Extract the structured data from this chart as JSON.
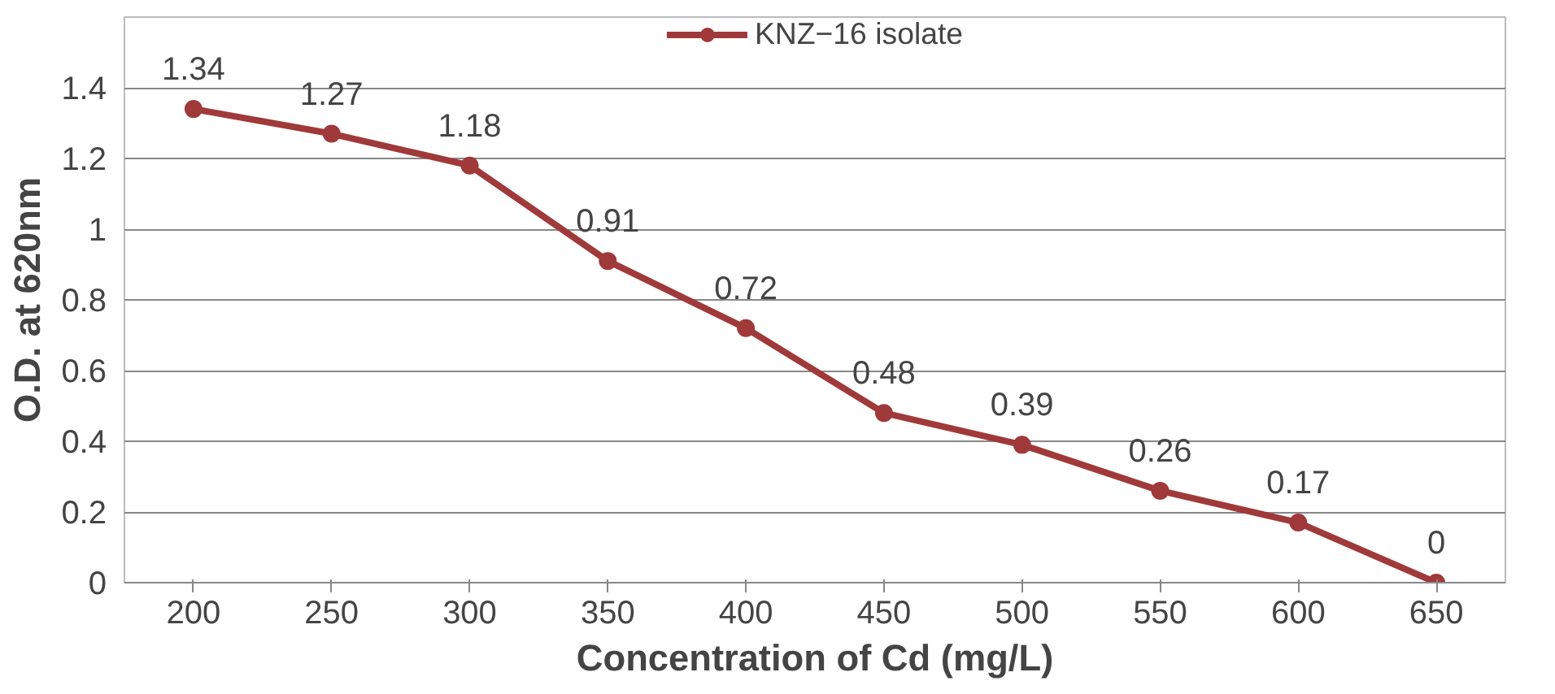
{
  "chart_data": {
    "type": "line",
    "xlabel": "Concentration of Cd (mg/L)",
    "ylabel": "O.D. at 620nm",
    "categories": [
      "200",
      "250",
      "300",
      "350",
      "400",
      "450",
      "500",
      "550",
      "600",
      "650"
    ],
    "series": [
      {
        "name": "KNZ−16 isolate",
        "color": "#a0393a",
        "values": [
          1.34,
          1.27,
          1.18,
          0.91,
          0.72,
          0.48,
          0.39,
          0.26,
          0.17,
          0
        ]
      }
    ],
    "ylim": [
      0,
      1.6
    ],
    "yticks": [
      0,
      0.2,
      0.4,
      0.6,
      0.8,
      1,
      1.2,
      1.4
    ],
    "grid": "y",
    "legend": "top",
    "marker": "circle",
    "data_labels": true
  }
}
